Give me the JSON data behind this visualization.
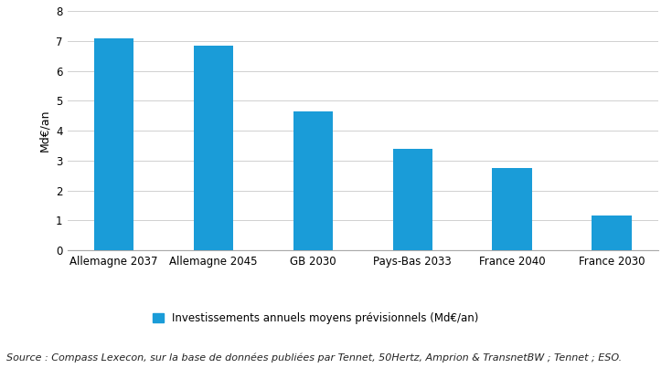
{
  "categories": [
    "Allemagne 2037",
    "Allemagne 2045",
    "GB 2030",
    "Pays-Bas 2033",
    "France 2040",
    "France 2030"
  ],
  "values": [
    7.1,
    6.85,
    4.65,
    3.4,
    2.75,
    1.15
  ],
  "bar_color": "#1a9cd8",
  "ylabel": "Md€/an",
  "ylim": [
    0,
    8
  ],
  "yticks": [
    0,
    1,
    2,
    3,
    4,
    5,
    6,
    7,
    8
  ],
  "legend_label": "Investissements annuels moyens prévisionnels (Md€/an)",
  "source_text": "Source : Compass Lexecon, sur la base de données publiées par Tennet, 50Hertz, Amprion & TransnetBW ; Tennet ; ESO.",
  "background_color": "#ffffff",
  "grid_color": "#d0d0d0",
  "axis_fontsize": 8.5,
  "legend_fontsize": 8.5,
  "source_fontsize": 8,
  "ylabel_fontsize": 9,
  "bar_width": 0.4
}
